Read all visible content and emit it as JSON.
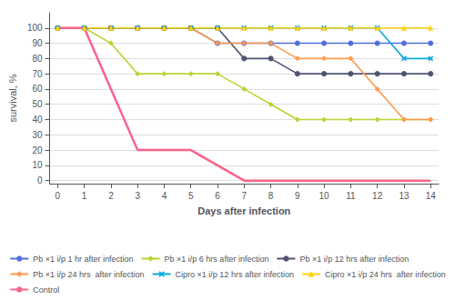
{
  "chart_data": {
    "type": "line",
    "xlabel": "Days after infection",
    "ylabel": "survival, %",
    "x": [
      0,
      1,
      2,
      3,
      4,
      5,
      6,
      7,
      8,
      9,
      10,
      11,
      12,
      13,
      14
    ],
    "series": [
      {
        "name": "Pb ×1 i/p 1 hr after infection",
        "marker": "circle",
        "values": [
          100,
          100,
          100,
          100,
          100,
          100,
          90,
          90,
          90,
          90,
          90,
          90,
          90,
          90,
          90
        ]
      },
      {
        "name": "Pb ×1 i/p 6 hrs after infection",
        "marker": "diamond",
        "values": [
          100,
          100,
          90,
          70,
          70,
          70,
          70,
          60,
          50,
          40,
          40,
          40,
          40,
          40,
          40
        ]
      },
      {
        "name": "Pb ×1 i/p 12 hrs after infection",
        "marker": "circle",
        "values": [
          100,
          100,
          100,
          100,
          100,
          100,
          100,
          80,
          80,
          70,
          70,
          70,
          70,
          70,
          70
        ]
      },
      {
        "name": "Pb ×1 i/p 24 hrs  after infection",
        "marker": "diamond",
        "values": [
          100,
          100,
          100,
          100,
          100,
          100,
          90,
          90,
          90,
          80,
          80,
          80,
          60,
          40,
          40
        ]
      },
      {
        "name": "Cipro ×1 i/p 12 hrs after infection",
        "marker": "x",
        "values": [
          100,
          100,
          100,
          100,
          100,
          100,
          100,
          100,
          100,
          100,
          100,
          100,
          100,
          80,
          80
        ]
      },
      {
        "name": "Cipro ×1 i/p 24 hrs  after infection",
        "marker": "triangle",
        "values": [
          100,
          100,
          100,
          100,
          100,
          100,
          100,
          100,
          100,
          100,
          100,
          100,
          100,
          100,
          100
        ]
      },
      {
        "name": "Control",
        "marker": "none",
        "values": [
          100,
          100,
          60,
          20,
          20,
          20,
          10,
          0,
          0,
          0,
          0,
          0,
          0,
          0,
          0
        ]
      }
    ],
    "xlim": [
      -0.3,
      14.3
    ],
    "ylim": [
      -2,
      110
    ],
    "xticks": [
      0,
      1,
      2,
      3,
      4,
      5,
      6,
      7,
      8,
      9,
      10,
      11,
      12,
      13,
      14
    ],
    "yticks": [
      0,
      10,
      20,
      30,
      40,
      50,
      60,
      70,
      80,
      90,
      100
    ],
    "grid": true,
    "legend": "bottom"
  }
}
